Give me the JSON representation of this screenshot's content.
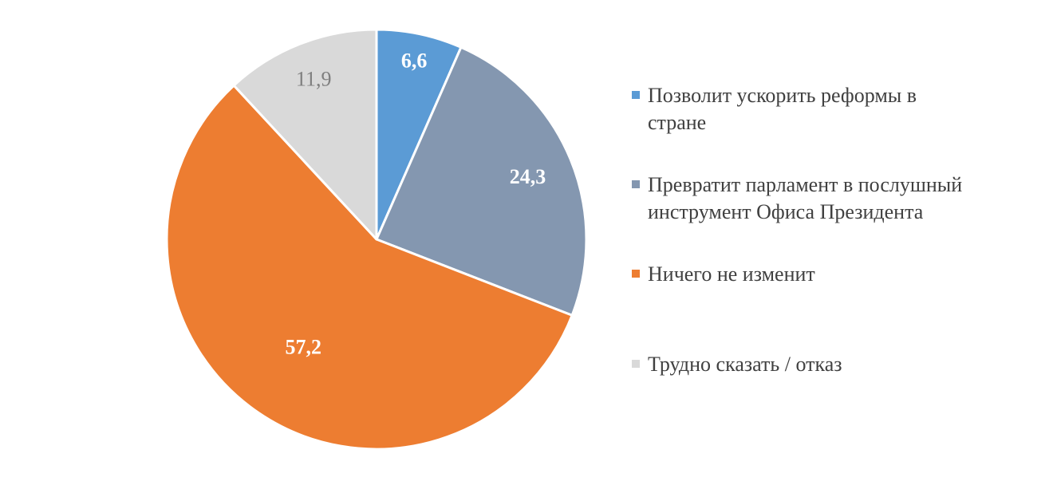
{
  "chart_data": {
    "type": "pie",
    "title": "",
    "start_angle_deg": 0,
    "direction": "clockwise",
    "legend_position": "right",
    "slices": [
      {
        "name": "Позволит ускорить реформы в стране",
        "value": 6.6,
        "label": "6,6",
        "color": "#5b9bd5",
        "label_color": "#ffffff",
        "label_bold": true
      },
      {
        "name": "Превратит парламент в послушный инструмент Офиса Президента",
        "value": 24.3,
        "label": "24,3",
        "color": "#8497b0",
        "label_color": "#ffffff",
        "label_bold": true
      },
      {
        "name": "Ничего не изменит",
        "value": 57.2,
        "label": "57,2",
        "color": "#ed7d31",
        "label_color": "#ffffff",
        "label_bold": true
      },
      {
        "name": "Трудно сказать / отказ",
        "value": 11.9,
        "label": "11,9",
        "color": "#d9d9d9",
        "label_color": "#7f7f7f",
        "label_bold": false
      }
    ]
  }
}
